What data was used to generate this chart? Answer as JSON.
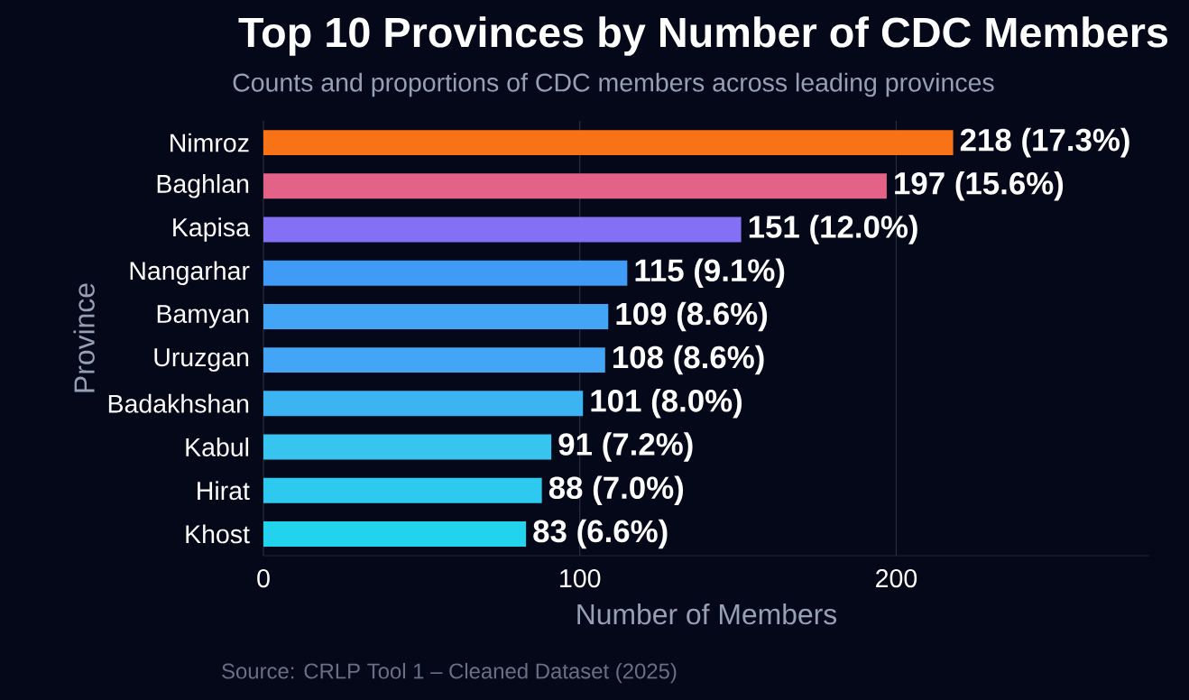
{
  "chart_data": {
    "type": "bar",
    "orientation": "horizontal",
    "title": "Top 10 Provinces by Number of CDC Members",
    "subtitle": "Counts and proportions of CDC members across leading provinces",
    "xlabel": "Number of Members",
    "ylabel": "Province",
    "categories": [
      "Nimroz",
      "Baghlan",
      "Kapisa",
      "Nangarhar",
      "Bamyan",
      "Uruzgan",
      "Badakhshan",
      "Kabul",
      "Hirat",
      "Khost"
    ],
    "values": [
      218,
      197,
      151,
      115,
      109,
      108,
      101,
      91,
      88,
      83
    ],
    "colors": [
      "#f97316",
      "#e46187",
      "#8470f4",
      "#3f9bf5",
      "#42a5f5",
      "#42a5f5",
      "#3db4f2",
      "#37c5f0",
      "#2ec9ef",
      "#22d3ee"
    ],
    "value_labels": [
      "218 (17.3%)",
      "197 (15.6%)",
      "151 (12.0%)",
      "115 (9.1%)",
      "109 (8.6%)",
      "108 (8.6%)",
      "101 (8.0%)",
      "91 (7.2%)",
      "88 (7.0%)",
      "83 (6.6%)"
    ],
    "xlim": [
      0,
      280
    ],
    "xticks": [
      0,
      100,
      200
    ],
    "grid": "x",
    "annotations": [
      "Source: CRLP Tool 1 – Cleaned Dataset (2025)"
    ]
  }
}
